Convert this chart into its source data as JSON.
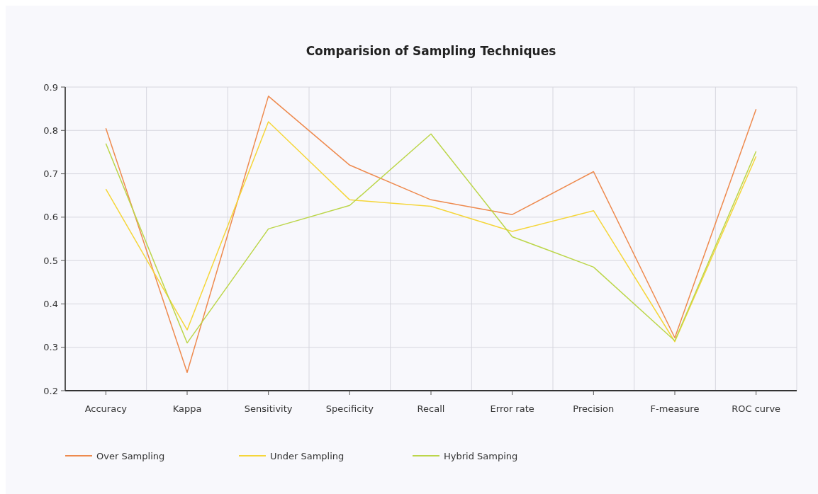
{
  "chart_data": {
    "type": "line",
    "title": "Comparision of Sampling Techniques",
    "categories": [
      "Accuracy",
      "Kappa",
      "Sensitivity",
      "Specificity",
      "Recall",
      "Error rate",
      "Precision",
      "F-measure",
      "ROC curve"
    ],
    "series": [
      {
        "name": "Over Sampling",
        "color": "#ee8a4e",
        "values": [
          0.805,
          0.242,
          0.879,
          0.72,
          0.64,
          0.606,
          0.705,
          0.322,
          0.849
        ]
      },
      {
        "name": "Under Sampling",
        "color": "#f5d63a",
        "values": [
          0.665,
          0.34,
          0.82,
          0.64,
          0.625,
          0.567,
          0.615,
          0.313,
          0.74
        ]
      },
      {
        "name": "Hybrid Samping",
        "color": "#bcd64a",
        "values": [
          0.77,
          0.31,
          0.573,
          0.627,
          0.792,
          0.555,
          0.485,
          0.315,
          0.752
        ]
      }
    ],
    "ylim": [
      0.2,
      0.9
    ],
    "yticks": [
      0.2,
      0.3,
      0.4,
      0.5,
      0.6,
      0.7,
      0.8,
      0.9
    ],
    "grid": true,
    "legend": "bottom"
  }
}
